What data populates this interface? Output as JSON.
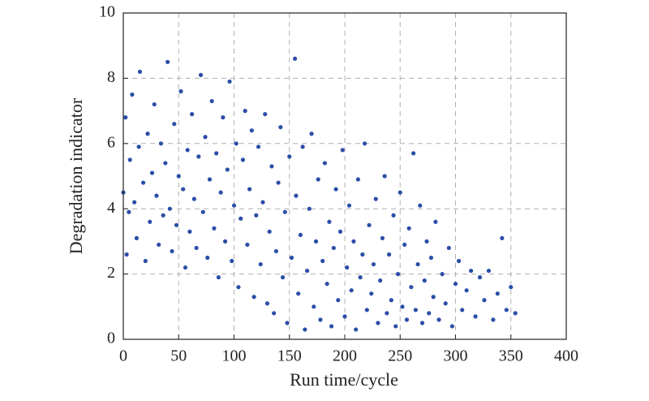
{
  "chart_data": {
    "type": "scatter",
    "xlabel": "Run time/cycle",
    "ylabel": "Degradation indicator",
    "xlim": [
      0,
      400
    ],
    "ylim": [
      0,
      10
    ],
    "xticks": [
      0,
      50,
      100,
      150,
      200,
      250,
      300,
      350,
      400
    ],
    "yticks": [
      0,
      2,
      4,
      6,
      8,
      10
    ],
    "grid": true,
    "color": "#2b4ea6",
    "x": [
      0,
      2,
      3,
      5,
      6,
      8,
      10,
      12,
      14,
      15,
      18,
      20,
      22,
      24,
      26,
      28,
      30,
      32,
      34,
      36,
      38,
      40,
      42,
      44,
      46,
      48,
      50,
      52,
      54,
      56,
      58,
      60,
      62,
      64,
      66,
      68,
      70,
      72,
      74,
      76,
      78,
      80,
      82,
      84,
      86,
      88,
      90,
      92,
      94,
      96,
      98,
      100,
      102,
      104,
      106,
      108,
      110,
      112,
      114,
      116,
      118,
      120,
      122,
      124,
      126,
      128,
      130,
      132,
      134,
      136,
      138,
      140,
      142,
      144,
      146,
      148,
      150,
      152,
      155,
      156,
      158,
      160,
      162,
      164,
      166,
      168,
      170,
      172,
      174,
      176,
      178,
      180,
      182,
      184,
      186,
      188,
      190,
      192,
      194,
      196,
      198,
      200,
      202,
      204,
      206,
      208,
      210,
      212,
      214,
      216,
      218,
      220,
      222,
      224,
      226,
      228,
      230,
      232,
      234,
      236,
      238,
      240,
      242,
      244,
      246,
      248,
      250,
      252,
      254,
      256,
      258,
      260,
      262,
      264,
      266,
      268,
      270,
      272,
      274,
      276,
      278,
      280,
      282,
      285,
      288,
      291,
      294,
      297,
      300,
      303,
      306,
      310,
      314,
      318,
      322,
      326,
      330,
      334,
      338,
      342,
      346,
      350,
      354
    ],
    "values": [
      4.5,
      6.8,
      2.6,
      3.9,
      5.5,
      7.5,
      4.2,
      3.1,
      5.9,
      8.2,
      4.8,
      2.4,
      6.3,
      3.6,
      5.1,
      7.2,
      4.4,
      2.9,
      6.0,
      3.8,
      5.4,
      8.5,
      4.0,
      2.7,
      6.6,
      3.5,
      5.0,
      7.6,
      4.6,
      2.2,
      5.8,
      3.3,
      6.9,
      4.3,
      2.8,
      5.6,
      8.1,
      3.9,
      6.2,
      2.5,
      4.9,
      7.3,
      3.4,
      5.7,
      1.9,
      4.5,
      6.8,
      3.0,
      5.2,
      7.9,
      2.4,
      4.1,
      6.0,
      1.6,
      3.7,
      5.5,
      7.0,
      2.9,
      4.6,
      6.4,
      1.3,
      3.8,
      5.9,
      2.3,
      4.2,
      6.9,
      1.1,
      3.3,
      5.3,
      0.8,
      2.7,
      4.8,
      6.5,
      1.9,
      3.9,
      0.5,
      5.6,
      2.5,
      8.6,
      4.4,
      1.4,
      3.2,
      5.9,
      0.3,
      2.1,
      4.0,
      6.3,
      1.0,
      3.0,
      4.9,
      0.6,
      2.4,
      5.4,
      1.7,
      3.6,
      0.4,
      2.8,
      4.6,
      1.2,
      3.3,
      5.8,
      0.7,
      2.2,
      4.1,
      1.5,
      3.0,
      0.3,
      4.9,
      1.9,
      2.6,
      6.0,
      0.9,
      3.5,
      1.4,
      2.3,
      4.3,
      0.5,
      1.8,
      3.1,
      5.0,
      0.8,
      2.6,
      1.2,
      3.8,
      0.4,
      2.0,
      4.5,
      1.0,
      2.9,
      0.6,
      3.4,
      1.6,
      5.7,
      0.9,
      2.3,
      4.1,
      0.5,
      1.8,
      3.0,
      0.8,
      2.5,
      1.3,
      3.6,
      0.6,
      2.0,
      1.1,
      2.8,
      0.4,
      1.7,
      2.4,
      0.9,
      1.5,
      2.1,
      0.7,
      1.9,
      1.2,
      2.1,
      0.6,
      1.4,
      3.1,
      0.9,
      1.6,
      0.8
    ]
  }
}
